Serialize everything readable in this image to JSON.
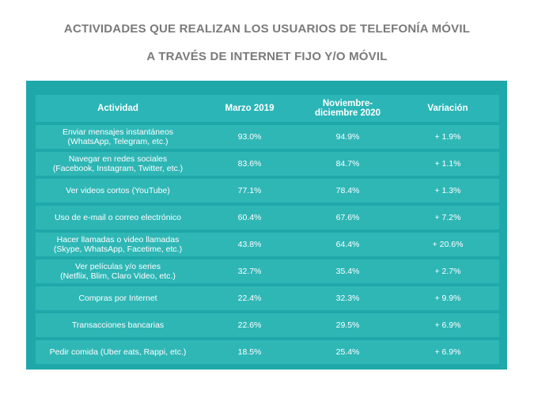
{
  "title": {
    "line1": "ACTIVIDADES QUE REALIZAN LOS USUARIOS DE TELEFONÍA MÓVIL",
    "line2": "A TRAVÉS DE INTERNET FIJO Y/O MÓVIL"
  },
  "colors": {
    "panel": "#1fa8aa",
    "row": "#2eb6b5",
    "title": "#7a7a7a"
  },
  "chart_data": {
    "type": "table",
    "columns": [
      "Actividad",
      "Marzo 2019",
      "Noviembre-diciembre 2020",
      "Variación"
    ],
    "column_lines": {
      "c2_line1": "Noviembre-",
      "c2_line2": "diciembre 2020"
    },
    "rows": [
      {
        "line1": "Enviar mensajes instantáneos",
        "line2": "(WhatsApp, Telegram, etc.)",
        "marzo_2019": "93.0%",
        "nov_dic_2020": "94.9%",
        "variacion": "+ 1.9%"
      },
      {
        "line1": "Navegar en redes sociales",
        "line2": "(Facebook, Instagram, Twitter, etc.)",
        "marzo_2019": "83.6%",
        "nov_dic_2020": "84.7%",
        "variacion": "+ 1.1%"
      },
      {
        "line1": "Ver videos cortos (YouTube)",
        "line2": "",
        "marzo_2019": "77.1%",
        "nov_dic_2020": "78.4%",
        "variacion": "+ 1.3%"
      },
      {
        "line1": "Uso de e-mail o correo electrónico",
        "line2": "",
        "marzo_2019": "60.4%",
        "nov_dic_2020": "67.6%",
        "variacion": "+ 7.2%"
      },
      {
        "line1": "Hacer llamadas o video llamadas",
        "line2": "(Skype, WhatsApp, Facetime, etc.)",
        "marzo_2019": "43.8%",
        "nov_dic_2020": "64.4%",
        "variacion": "+ 20.6%"
      },
      {
        "line1": "Ver películas y/o series",
        "line2": "(Netflix, Blim, Claro Video, etc.)",
        "marzo_2019": "32.7%",
        "nov_dic_2020": "35.4%",
        "variacion": "+ 2.7%"
      },
      {
        "line1": "Compras por Internet",
        "line2": "",
        "marzo_2019": "22.4%",
        "nov_dic_2020": "32.3%",
        "variacion": "+ 9.9%"
      },
      {
        "line1": "Transacciones bancarias",
        "line2": "",
        "marzo_2019": "22.6%",
        "nov_dic_2020": "29.5%",
        "variacion": "+ 6.9%"
      },
      {
        "line1": "Pedir comida (Uber eats, Rappi, etc.)",
        "line2": "",
        "marzo_2019": "18.5%",
        "nov_dic_2020": "25.4%",
        "variacion": "+ 6.9%"
      }
    ]
  }
}
